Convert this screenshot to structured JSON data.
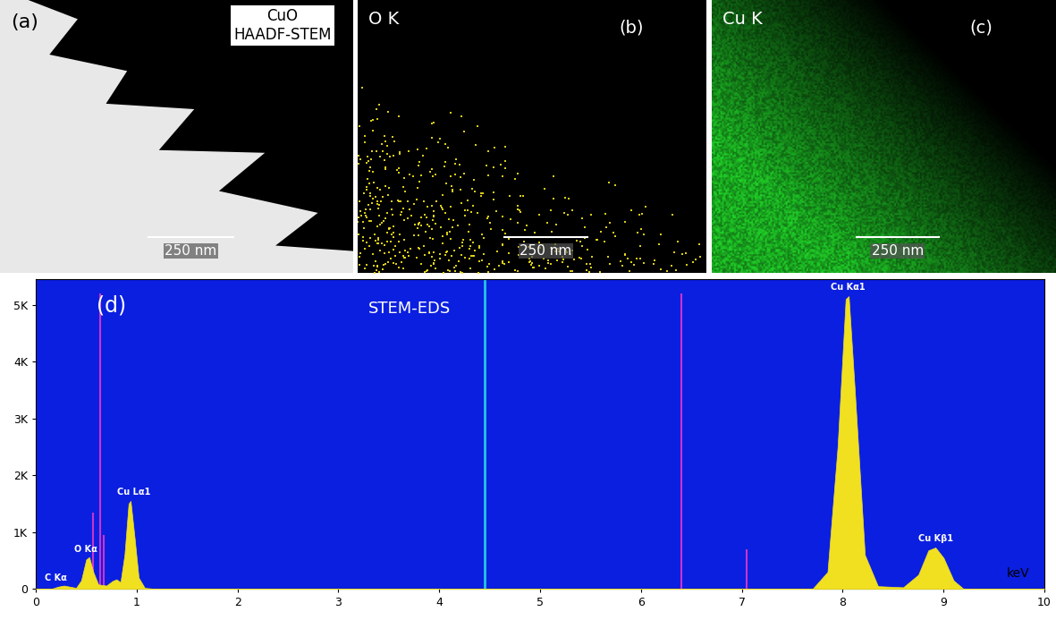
{
  "panels": [
    {
      "tag": "(a)",
      "title": "CuO\nHAADF-STEM",
      "scale_bar": "250 nm",
      "color": "#e8e8e8"
    },
    {
      "tag": "(b)",
      "title": "O K",
      "scale_bar": "250 nm",
      "color": "#f2e21a"
    },
    {
      "tag": "(c)",
      "title": "Cu K",
      "scale_bar": "250 nm",
      "color": "#22d62a"
    }
  ],
  "chart_data": {
    "type": "area",
    "title": "STEM-EDS",
    "panel_label": "(d)",
    "x_label": "keV",
    "x": [
      0.0,
      0.15,
      0.22,
      0.28,
      0.34,
      0.4,
      0.45,
      0.5,
      0.53,
      0.57,
      0.62,
      0.7,
      0.76,
      0.8,
      0.84,
      0.88,
      0.92,
      0.94,
      0.98,
      1.02,
      1.08,
      1.2,
      7.7,
      7.85,
      7.95,
      8.03,
      8.06,
      8.12,
      8.22,
      8.35,
      8.6,
      8.75,
      8.85,
      8.92,
      9.0,
      9.1,
      9.2,
      10.0
    ],
    "values": [
      0,
      0,
      40,
      60,
      40,
      20,
      150,
      520,
      560,
      300,
      80,
      60,
      140,
      170,
      120,
      600,
      1500,
      1550,
      900,
      200,
      20,
      0,
      0,
      300,
      2500,
      5100,
      5150,
      3500,
      600,
      50,
      30,
      250,
      680,
      730,
      550,
      150,
      0,
      0
    ],
    "color": "#f0e020",
    "xlim": [
      0,
      10
    ],
    "xticks": [
      0,
      1,
      2,
      3,
      4,
      5,
      6,
      7,
      8,
      9,
      10
    ],
    "ylim": [
      0,
      5450
    ],
    "yticks": [
      0,
      {
        "value": 1000,
        "label": "1K"
      },
      {
        "value": 2000,
        "label": "2K"
      },
      {
        "value": 3000,
        "label": "3K"
      },
      {
        "value": 4000,
        "label": "4K"
      },
      {
        "value": 5000,
        "label": "5K"
      }
    ],
    "grid": false,
    "annotations": [
      {
        "text": "C Kα",
        "x": 0.2,
        "y": 120
      },
      {
        "text": "O Kα",
        "x": 0.5,
        "y": 620
      },
      {
        "text": "Cu Lα1",
        "x": 0.97,
        "y": 1620
      },
      {
        "text": "Cu Kα1",
        "x": 8.05,
        "y": 5230
      },
      {
        "text": "Cu Kβ1",
        "x": 8.92,
        "y": 810
      }
    ],
    "marker_lines": [
      {
        "x": 0.64,
        "height": 5200,
        "color": "#cc33cc"
      },
      {
        "x": 0.57,
        "height": 1350,
        "color": "#cc33cc"
      },
      {
        "x": 0.67,
        "height": 950,
        "color": "#cc33cc"
      },
      {
        "x": 4.45,
        "height": 5450,
        "color": "#22c8e0"
      },
      {
        "x": 6.4,
        "height": 5200,
        "color": "#cc33cc"
      },
      {
        "x": 7.05,
        "height": 700,
        "color": "#cc33cc"
      }
    ]
  }
}
